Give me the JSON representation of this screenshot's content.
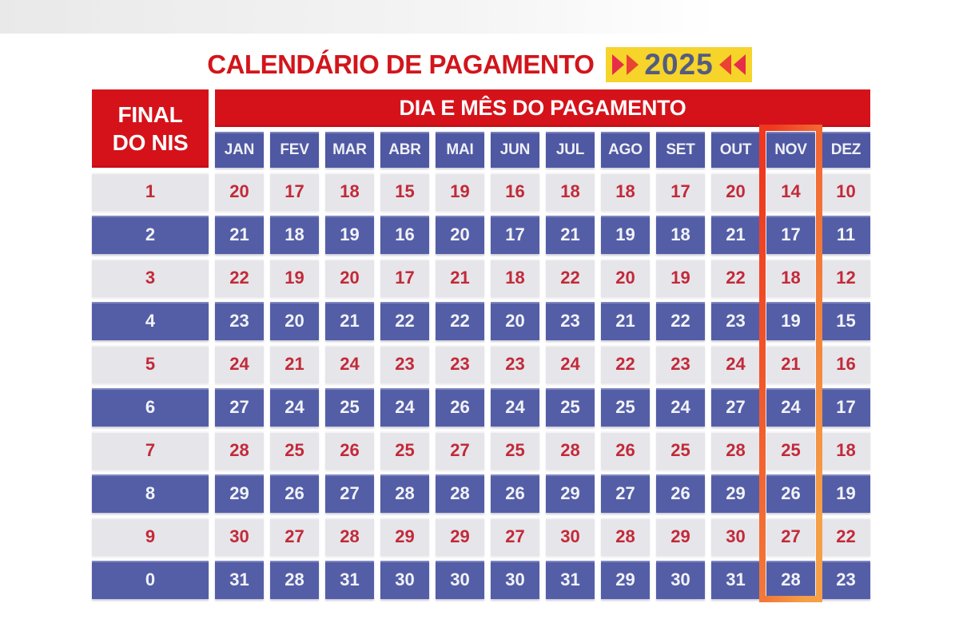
{
  "header": {
    "title": "CALENDÁRIO DE PAGAMENTO",
    "year_badge": "2025"
  },
  "table": {
    "nis_header_line1": "FINAL",
    "nis_header_line2": "DO NIS",
    "payment_header": "DIA E MÊS DO PAGAMENTO",
    "months": [
      "JAN",
      "FEV",
      "MAR",
      "ABR",
      "MAI",
      "JUN",
      "JUL",
      "AGO",
      "SET",
      "OUT",
      "NOV",
      "DEZ"
    ],
    "highlighted_month": "NOV",
    "rows": [
      {
        "nis": "1",
        "days": [
          20,
          17,
          18,
          15,
          19,
          16,
          18,
          18,
          17,
          20,
          14,
          10
        ]
      },
      {
        "nis": "2",
        "days": [
          21,
          18,
          19,
          16,
          20,
          17,
          21,
          19,
          18,
          21,
          17,
          11
        ]
      },
      {
        "nis": "3",
        "days": [
          22,
          19,
          20,
          17,
          21,
          18,
          22,
          20,
          19,
          22,
          18,
          12
        ]
      },
      {
        "nis": "4",
        "days": [
          23,
          20,
          21,
          22,
          22,
          20,
          23,
          21,
          22,
          23,
          19,
          15
        ]
      },
      {
        "nis": "5",
        "days": [
          24,
          21,
          24,
          23,
          23,
          23,
          24,
          22,
          23,
          24,
          21,
          16
        ]
      },
      {
        "nis": "6",
        "days": [
          27,
          24,
          25,
          24,
          26,
          24,
          25,
          25,
          24,
          27,
          24,
          17
        ]
      },
      {
        "nis": "7",
        "days": [
          28,
          25,
          26,
          25,
          27,
          25,
          28,
          26,
          25,
          28,
          25,
          18
        ]
      },
      {
        "nis": "8",
        "days": [
          29,
          26,
          27,
          28,
          28,
          26,
          29,
          27,
          26,
          29,
          26,
          19
        ]
      },
      {
        "nis": "9",
        "days": [
          30,
          27,
          28,
          29,
          29,
          27,
          30,
          28,
          29,
          30,
          27,
          22
        ]
      },
      {
        "nis": "0",
        "days": [
          31,
          28,
          31,
          30,
          30,
          30,
          31,
          29,
          30,
          31,
          28,
          23
        ]
      }
    ]
  },
  "colors": {
    "header_red": "#D5121A",
    "title_red": "#D2151B",
    "cell_blue": "#545EA7",
    "month_blue": "#4F58A2",
    "cell_gray": "#E6E5EA",
    "number_red": "#C22A38",
    "badge_yellow": "#F6D42A",
    "badge_text": "#545C80",
    "chevron_red": "#E62C4A",
    "highlight_gradient_start": "#EE3820",
    "highlight_gradient_end": "#F59F47"
  },
  "chart_data": {
    "type": "table",
    "title": "CALENDÁRIO DE PAGAMENTO 2025",
    "columns": [
      "FINAL DO NIS",
      "JAN",
      "FEV",
      "MAR",
      "ABR",
      "MAI",
      "JUN",
      "JUL",
      "AGO",
      "SET",
      "OUT",
      "NOV",
      "DEZ"
    ],
    "rows": [
      [
        "1",
        20,
        17,
        18,
        15,
        19,
        16,
        18,
        18,
        17,
        20,
        14,
        10
      ],
      [
        "2",
        21,
        18,
        19,
        16,
        20,
        17,
        21,
        19,
        18,
        21,
        17,
        11
      ],
      [
        "3",
        22,
        19,
        20,
        17,
        21,
        18,
        22,
        20,
        19,
        22,
        18,
        12
      ],
      [
        "4",
        23,
        20,
        21,
        22,
        22,
        20,
        23,
        21,
        22,
        23,
        19,
        15
      ],
      [
        "5",
        24,
        21,
        24,
        23,
        23,
        23,
        24,
        22,
        23,
        24,
        21,
        16
      ],
      [
        "6",
        27,
        24,
        25,
        24,
        26,
        24,
        25,
        25,
        24,
        27,
        24,
        17
      ],
      [
        "7",
        28,
        25,
        26,
        25,
        27,
        25,
        28,
        26,
        25,
        28,
        25,
        18
      ],
      [
        "8",
        29,
        26,
        27,
        28,
        28,
        26,
        29,
        27,
        26,
        29,
        26,
        19
      ],
      [
        "9",
        30,
        27,
        28,
        29,
        29,
        27,
        30,
        28,
        29,
        30,
        27,
        22
      ],
      [
        "0",
        31,
        28,
        31,
        30,
        30,
        30,
        31,
        29,
        30,
        31,
        28,
        23
      ]
    ],
    "highlighted_column": "NOV",
    "notes": "Rows alternate light-gray (red numbers) and blue (white numbers); NOV column framed in red-orange gradient"
  }
}
